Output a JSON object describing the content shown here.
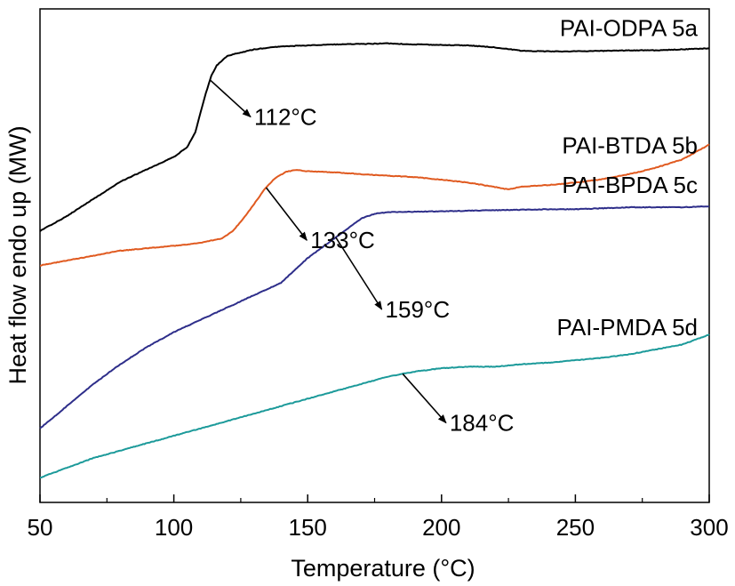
{
  "chart_data": {
    "type": "line",
    "title": "",
    "xlabel": "Temperature (°C)",
    "ylabel": "Heat flow endo up (MW)",
    "xlim": [
      50,
      300
    ],
    "x_ticks": [
      50,
      100,
      150,
      200,
      250,
      300
    ],
    "x_tick_labels": [
      "50",
      "100",
      "150",
      "200",
      "250",
      "300"
    ],
    "ylim": [
      0,
      100
    ],
    "y_ticks_shown": false,
    "series": [
      {
        "name": "PAI-ODPA 5a",
        "color": "#000000",
        "x": [
          50,
          60,
          70,
          80,
          90,
          100,
          105,
          108,
          110,
          112,
          114,
          116,
          120,
          130,
          140,
          150,
          160,
          170,
          180,
          190,
          200,
          210,
          220,
          230,
          240,
          250,
          260,
          270,
          280,
          290,
          300
        ],
        "y": [
          55.0,
          58.0,
          61.5,
          65.0,
          67.5,
          70.0,
          72.0,
          75.0,
          79.0,
          83.0,
          86.5,
          88.5,
          90.5,
          91.8,
          92.4,
          92.6,
          92.8,
          92.9,
          93.0,
          92.8,
          92.7,
          92.6,
          92.2,
          91.5,
          91.4,
          91.4,
          91.5,
          91.6,
          91.6,
          91.8,
          92.0
        ],
        "label_position": "upper-right"
      },
      {
        "name": "PAI-BTDA 5b",
        "color": "#e05a20",
        "x": [
          50,
          60,
          70,
          80,
          90,
          100,
          110,
          118,
          122,
          126,
          130,
          134,
          138,
          142,
          146,
          150,
          160,
          170,
          180,
          190,
          200,
          210,
          220,
          225,
          230,
          240,
          250,
          260,
          270,
          280,
          290,
          300
        ],
        "y": [
          48.0,
          49.0,
          50.0,
          51.0,
          51.5,
          52.0,
          52.6,
          53.5,
          55.0,
          57.5,
          60.5,
          63.5,
          65.8,
          67.0,
          67.4,
          67.1,
          66.9,
          66.5,
          66.2,
          65.9,
          65.4,
          64.8,
          63.9,
          63.4,
          64.0,
          64.3,
          64.8,
          65.5,
          66.5,
          67.8,
          69.5,
          72.5
        ],
        "label_position": "right"
      },
      {
        "name": "PAI-BPDA 5c",
        "color": "#2e2e8a",
        "x": [
          50,
          60,
          70,
          80,
          90,
          100,
          110,
          120,
          130,
          140,
          145,
          150,
          155,
          160,
          165,
          170,
          175,
          180,
          190,
          200,
          210,
          220,
          230,
          240,
          250,
          260,
          270,
          280,
          290,
          300
        ],
        "y": [
          15.0,
          19.5,
          24.0,
          28.0,
          31.5,
          34.5,
          37.0,
          39.5,
          42.0,
          44.5,
          47.0,
          49.5,
          51.5,
          53.5,
          55.5,
          57.5,
          58.5,
          58.8,
          58.9,
          59.0,
          59.1,
          59.2,
          59.3,
          59.4,
          59.4,
          59.6,
          59.8,
          59.8,
          59.8,
          60.0
        ],
        "label_position": "right"
      },
      {
        "name": "PAI-PMDA 5d",
        "color": "#1c9a9a",
        "x": [
          50,
          60,
          70,
          80,
          90,
          100,
          110,
          120,
          130,
          140,
          150,
          160,
          170,
          180,
          190,
          200,
          210,
          220,
          230,
          240,
          250,
          260,
          270,
          280,
          290,
          300
        ],
        "y": [
          5.0,
          7.0,
          9.0,
          10.5,
          12.0,
          13.5,
          15.0,
          16.5,
          18.0,
          19.5,
          21.0,
          22.5,
          24.0,
          25.5,
          26.5,
          27.2,
          27.5,
          27.5,
          28.0,
          28.3,
          28.8,
          29.3,
          30.0,
          31.0,
          32.0,
          34.0
        ],
        "label_position": "right"
      }
    ],
    "annotations": [
      {
        "text": "112°C",
        "arrow_from_x": 112,
        "series": "PAI-ODPA 5a",
        "text_x": 130,
        "text_y": 76.5
      },
      {
        "text": "133°C",
        "arrow_from_x": 133,
        "series": "PAI-BTDA 5b",
        "text_x": 151,
        "text_y": 51.5
      },
      {
        "text": "159°C",
        "arrow_from_x": 159,
        "series": "PAI-BPDA 5c",
        "text_x": 179,
        "text_y": 37.5
      },
      {
        "text": "184°C",
        "arrow_from_x": 184,
        "series": "PAI-PMDA 5d",
        "text_x": 203,
        "text_y": 14.5
      }
    ],
    "grid": false,
    "legend": "inline-labels"
  }
}
